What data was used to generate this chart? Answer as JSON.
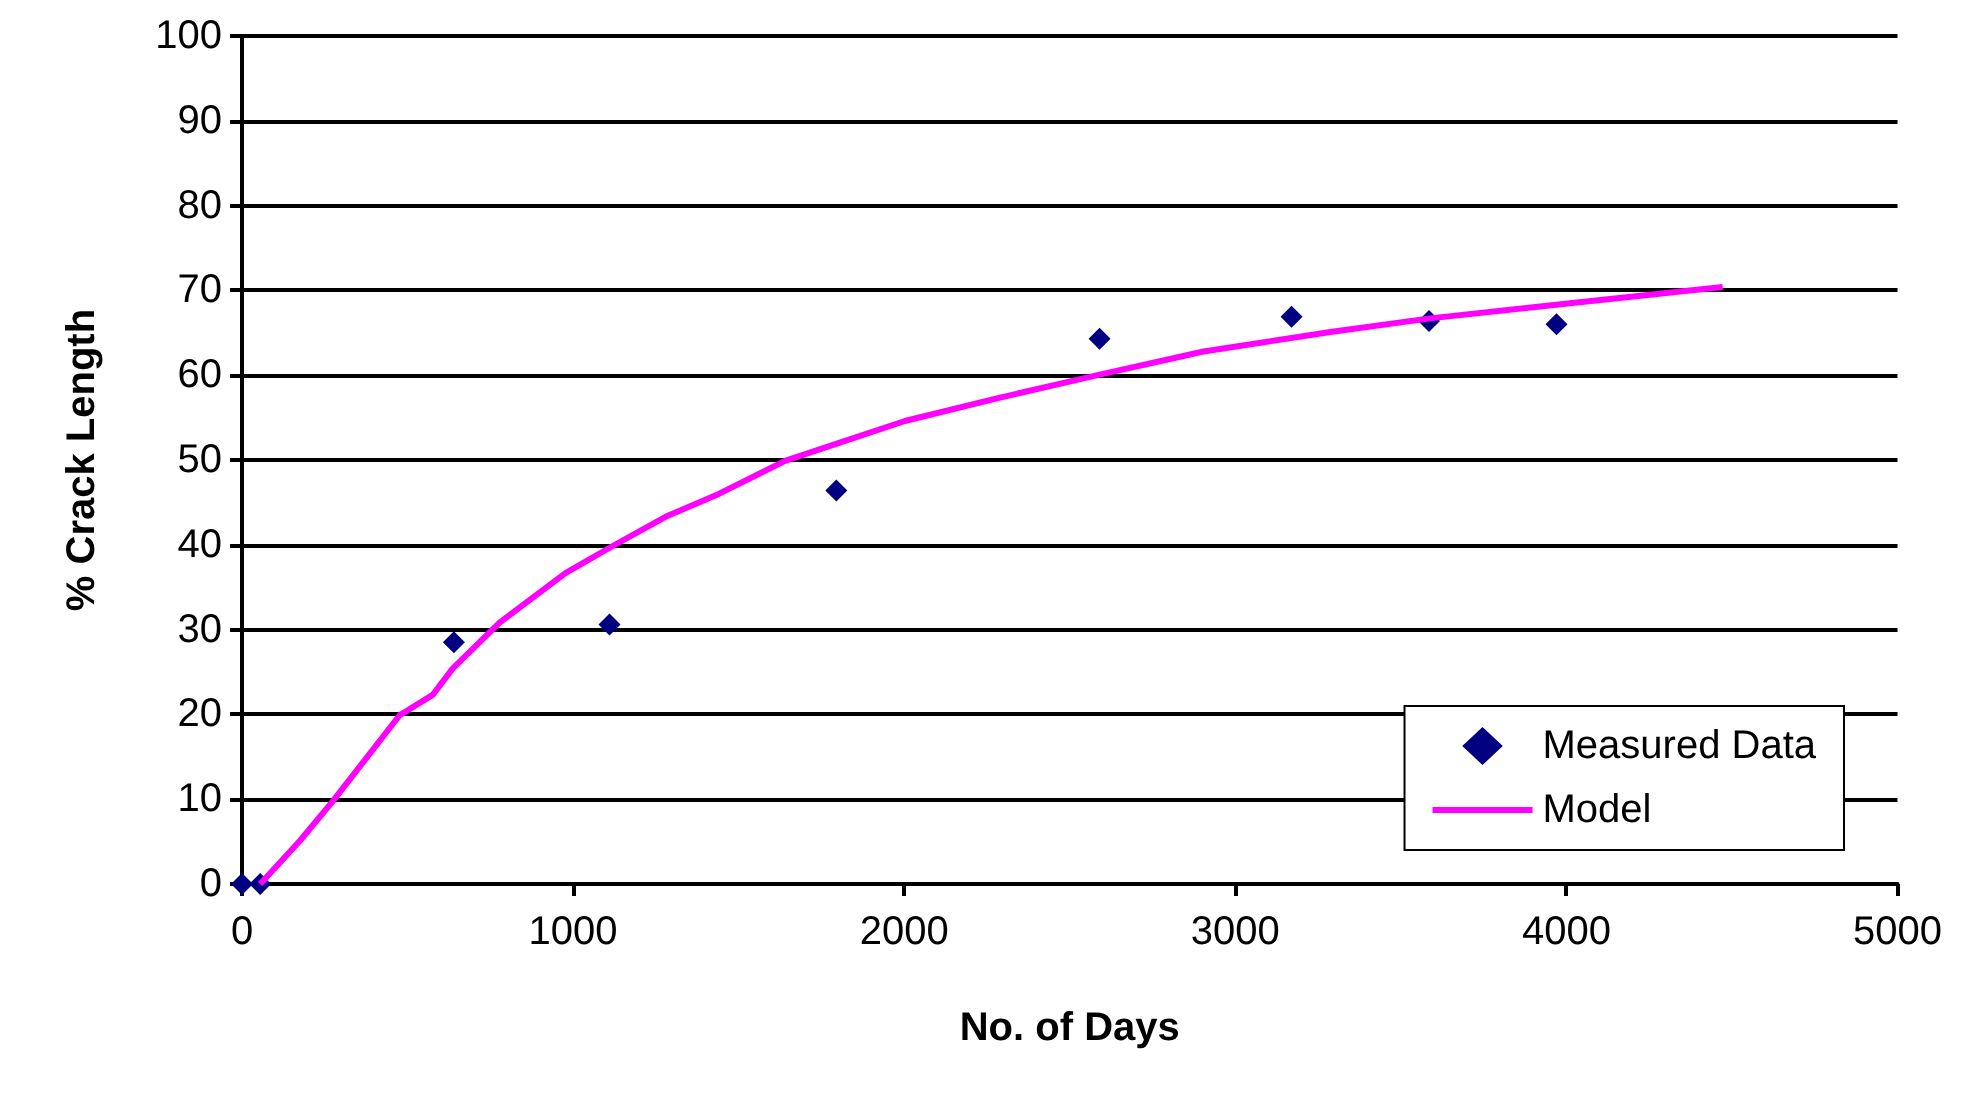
{
  "chart_data": {
    "type": "scatter",
    "xlabel": "No. of Days",
    "ylabel": "% Crack Length",
    "xlim": [
      0,
      5000
    ],
    "xticks": [
      0,
      1000,
      2000,
      3000,
      4000,
      5000
    ],
    "ylim": [
      0,
      100
    ],
    "yticks": [
      0,
      10,
      20,
      30,
      40,
      50,
      60,
      70,
      80,
      90,
      100
    ],
    "grid": "y",
    "legend": "bottom right",
    "series": [
      {
        "name": "Measured Data",
        "marker": "diamond",
        "color": "#000080",
        "x": [
          0,
          55,
          640,
          1110,
          1795,
          2590,
          3170,
          3585,
          3970
        ],
        "values": [
          0,
          0,
          28.5,
          30.6,
          46.4,
          64.3,
          66.9,
          66.4,
          66.0
        ]
      },
      {
        "name": "Model",
        "type": "line",
        "marker": "none",
        "color": "#ff00ff",
        "x": [
          55,
          175,
          275,
          476,
          576,
          636,
          777,
          978,
          1117,
          1279,
          1440,
          1640,
          1801,
          2002,
          2283,
          2584,
          2904,
          3287,
          3588,
          3990,
          4472
        ],
        "values": [
          0,
          5.1,
          9.8,
          19.9,
          22.3,
          25.4,
          30.8,
          36.7,
          39.8,
          43.3,
          46.0,
          49.9,
          52.0,
          54.6,
          57.3,
          60.0,
          62.8,
          65.1,
          66.7,
          68.4,
          70.4
        ]
      }
    ]
  }
}
